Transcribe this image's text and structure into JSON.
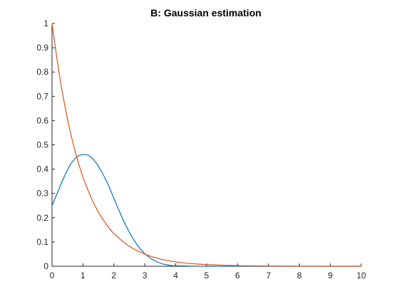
{
  "chart_data": {
    "type": "line",
    "title": "B: Gaussian estimation",
    "xlabel": "",
    "ylabel": "",
    "xlim": [
      0,
      10
    ],
    "ylim": [
      0,
      1
    ],
    "x_ticks": [
      0,
      1,
      2,
      3,
      4,
      5,
      6,
      7,
      8,
      9,
      10
    ],
    "y_ticks": [
      0,
      0.1,
      0.2,
      0.3,
      0.4,
      0.5,
      0.6,
      0.7,
      0.8,
      0.9,
      1
    ],
    "grid": false,
    "series": [
      {
        "color": "#0072bd",
        "x": [
          0,
          0.2,
          0.4,
          0.6,
          0.8,
          1.0,
          1.2,
          1.4,
          1.6,
          1.8,
          2.0,
          2.2,
          2.4,
          2.6,
          2.8,
          3.0,
          3.2,
          3.4,
          3.6,
          3.8,
          4.0,
          5,
          6,
          7,
          8,
          9,
          10
        ],
        "y": [
          0.25,
          0.31,
          0.37,
          0.42,
          0.45,
          0.46,
          0.455,
          0.43,
          0.39,
          0.34,
          0.28,
          0.22,
          0.165,
          0.118,
          0.08,
          0.052,
          0.032,
          0.018,
          0.009,
          0.004,
          0.002,
          0,
          0,
          0,
          0,
          0,
          0
        ]
      },
      {
        "color": "#d95319",
        "x": [
          0,
          0.25,
          0.5,
          0.75,
          1.0,
          1.25,
          1.5,
          1.75,
          2.0,
          2.5,
          3.0,
          3.5,
          4.0,
          4.5,
          5.0,
          6.0,
          7.0,
          8.0,
          9.0,
          10.0
        ],
        "y": [
          1,
          0.779,
          0.607,
          0.472,
          0.368,
          0.287,
          0.223,
          0.174,
          0.135,
          0.082,
          0.05,
          0.03,
          0.018,
          0.011,
          0.0067,
          0.0025,
          0.0009,
          0.0003,
          0.0001,
          0
        ]
      }
    ]
  }
}
